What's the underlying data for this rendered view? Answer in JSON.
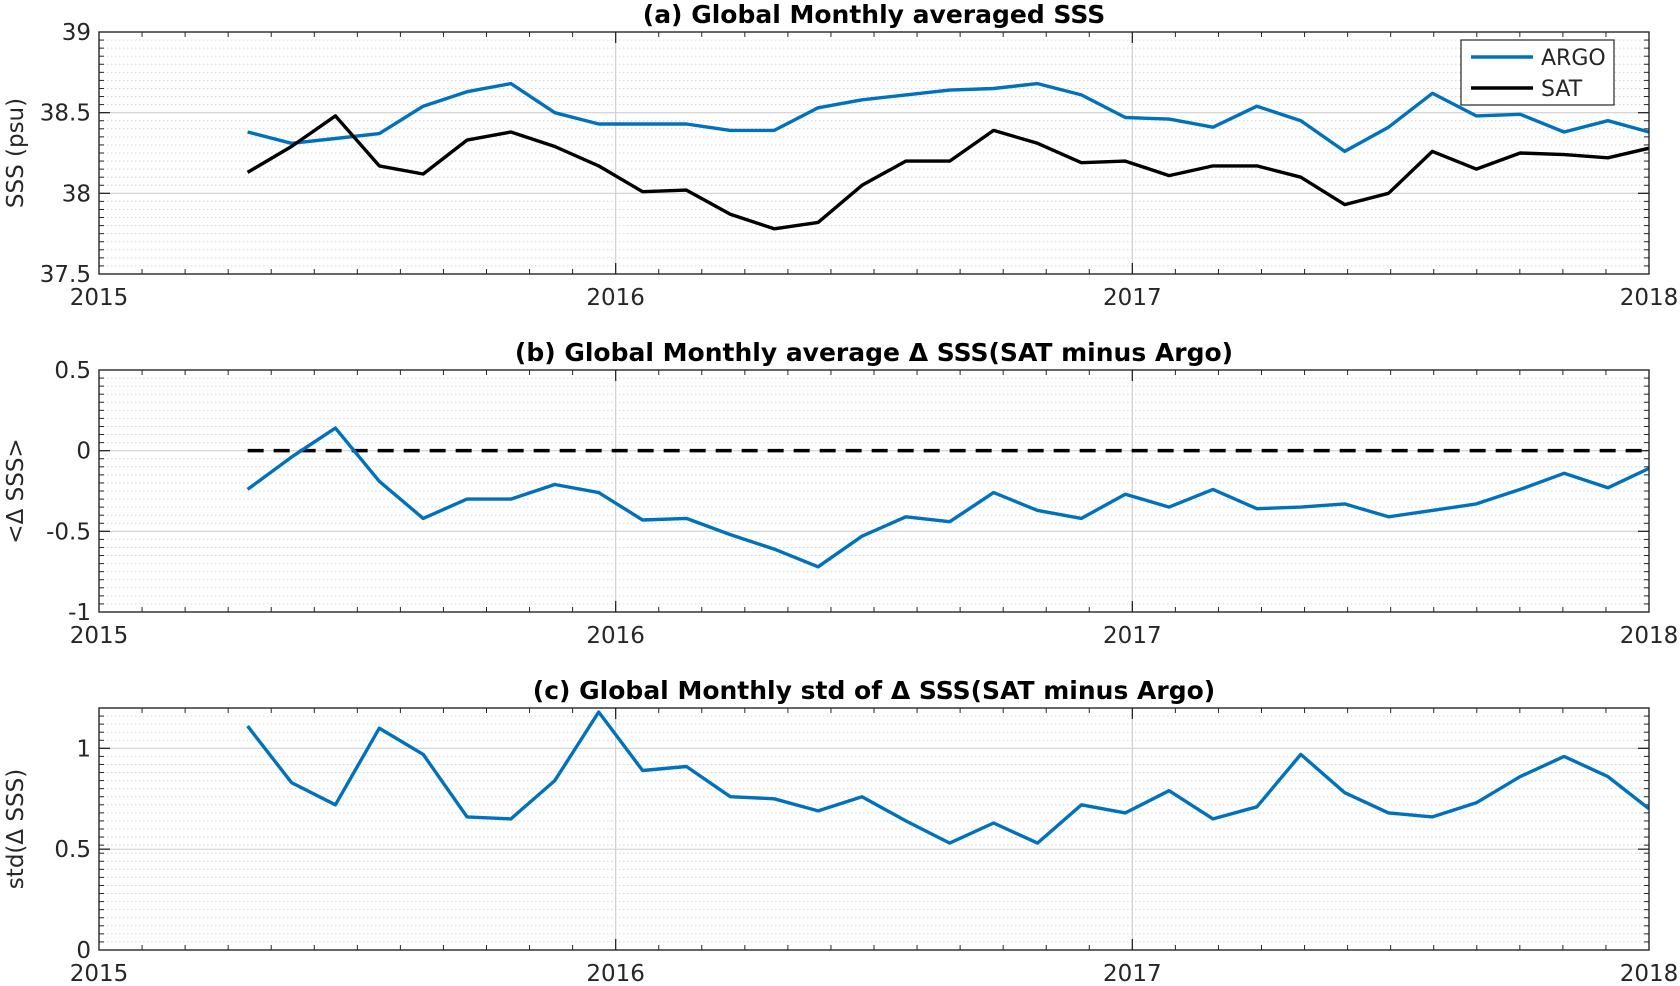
{
  "chart_data": [
    {
      "type": "line",
      "title": "(a) Global Monthly averaged SSS",
      "xlabel": "",
      "ylabel": "SSS (psu)",
      "xlim": [
        2015,
        2018
      ],
      "ylim": [
        37.5,
        39
      ],
      "xticks": [
        "2015",
        "2016",
        "2017",
        "2018"
      ],
      "yticks": [
        "37.5",
        "38",
        "38.5",
        "39"
      ],
      "grid": true,
      "legend": "top-right",
      "x": [
        2015.2877,
        2015.3726,
        2015.4575,
        2015.5425,
        2015.6274,
        2015.7123,
        2015.7973,
        2015.8822,
        2015.9671,
        2016.0521,
        2016.137,
        2016.2219,
        2016.3068,
        2016.3918,
        2016.4767,
        2016.5616,
        2016.6466,
        2016.7315,
        2016.8164,
        2016.9014,
        2016.9863,
        2017.0712,
        2017.1562,
        2017.2411,
        2017.326,
        2017.411,
        2017.4959,
        2017.5808,
        2017.6658,
        2017.7507,
        2017.8356,
        2017.9205,
        2018.0
      ],
      "series": [
        {
          "name": "ARGO",
          "color": "#0072BD",
          "values": [
            38.38,
            38.31,
            38.34,
            38.37,
            38.54,
            38.63,
            38.68,
            38.5,
            38.43,
            38.43,
            38.43,
            38.39,
            38.39,
            38.53,
            38.58,
            38.61,
            38.64,
            38.65,
            38.68,
            38.61,
            38.47,
            38.46,
            38.41,
            38.54,
            38.45,
            38.26,
            38.41,
            38.62,
            38.48,
            38.49,
            38.38,
            38.45,
            38.38
          ]
        },
        {
          "name": "SAT",
          "color": "#000000",
          "values": [
            38.13,
            38.29,
            38.48,
            38.17,
            38.12,
            38.33,
            38.38,
            38.29,
            38.17,
            38.01,
            38.02,
            37.87,
            37.78,
            37.82,
            38.05,
            38.2,
            38.2,
            38.39,
            38.31,
            38.19,
            38.2,
            38.11,
            38.17,
            38.17,
            38.1,
            37.93,
            38.0,
            38.26,
            38.15,
            38.25,
            38.24,
            38.22,
            38.28
          ]
        }
      ]
    },
    {
      "type": "line",
      "title": "(b) Global Monthly average Δ SSS(SAT minus Argo)",
      "xlabel": "",
      "ylabel": "<Δ SSS>",
      "xlim": [
        2015,
        2018
      ],
      "ylim": [
        -1,
        0.5
      ],
      "xticks": [
        "2015",
        "2016",
        "2017",
        "2018"
      ],
      "yticks": [
        "-1",
        "-0.5",
        "0",
        "0.5"
      ],
      "grid": true,
      "reference_line": {
        "y": 0,
        "style": "dashed",
        "color": "#000000",
        "from": 2015.2877,
        "to": 2018.0
      },
      "x": [
        2015.2877,
        2015.3726,
        2015.4575,
        2015.5425,
        2015.6274,
        2015.7123,
        2015.7973,
        2015.8822,
        2015.9671,
        2016.0521,
        2016.137,
        2016.2219,
        2016.3068,
        2016.3918,
        2016.4767,
        2016.5616,
        2016.6466,
        2016.7315,
        2016.8164,
        2016.9014,
        2016.9863,
        2017.0712,
        2017.1562,
        2017.2411,
        2017.326,
        2017.411,
        2017.4959,
        2017.5808,
        2017.6658,
        2017.7507,
        2017.8356,
        2017.9205,
        2018.0
      ],
      "series": [
        {
          "color": "#0072BD",
          "values": [
            -0.24,
            -0.04,
            0.14,
            -0.19,
            -0.42,
            -0.3,
            -0.3,
            -0.21,
            -0.26,
            -0.43,
            -0.42,
            -0.52,
            -0.61,
            -0.72,
            -0.53,
            -0.41,
            -0.44,
            -0.26,
            -0.37,
            -0.42,
            -0.27,
            -0.35,
            -0.24,
            -0.36,
            -0.35,
            -0.33,
            -0.41,
            -0.37,
            -0.33,
            -0.24,
            -0.14,
            -0.23,
            -0.11
          ]
        }
      ]
    },
    {
      "type": "line",
      "title": "(c) Global Monthly std of Δ SSS(SAT minus Argo)",
      "xlabel": "",
      "ylabel": "std(Δ SSS)",
      "xlim": [
        2015,
        2018
      ],
      "ylim": [
        0,
        1.2
      ],
      "xticks": [
        "2015",
        "2016",
        "2017",
        "2018"
      ],
      "yticks": [
        "0",
        "0.5",
        "1"
      ],
      "grid": true,
      "x": [
        2015.2877,
        2015.3726,
        2015.4575,
        2015.5425,
        2015.6274,
        2015.7123,
        2015.7973,
        2015.8822,
        2015.9671,
        2016.0521,
        2016.137,
        2016.2219,
        2016.3068,
        2016.3918,
        2016.4767,
        2016.5616,
        2016.6466,
        2016.7315,
        2016.8164,
        2016.9014,
        2016.9863,
        2017.0712,
        2017.1562,
        2017.2411,
        2017.326,
        2017.411,
        2017.4959,
        2017.5808,
        2017.6658,
        2017.7507,
        2017.8356,
        2017.9205,
        2018.0
      ],
      "series": [
        {
          "color": "#0072BD",
          "values": [
            1.11,
            0.83,
            0.72,
            1.1,
            0.97,
            0.66,
            0.65,
            0.84,
            1.18,
            0.89,
            0.91,
            0.76,
            0.75,
            0.69,
            0.76,
            0.64,
            0.53,
            0.63,
            0.53,
            0.72,
            0.68,
            0.79,
            0.65,
            0.71,
            0.97,
            0.78,
            0.68,
            0.66,
            0.73,
            0.86,
            0.96,
            0.86,
            0.7
          ]
        }
      ]
    }
  ]
}
